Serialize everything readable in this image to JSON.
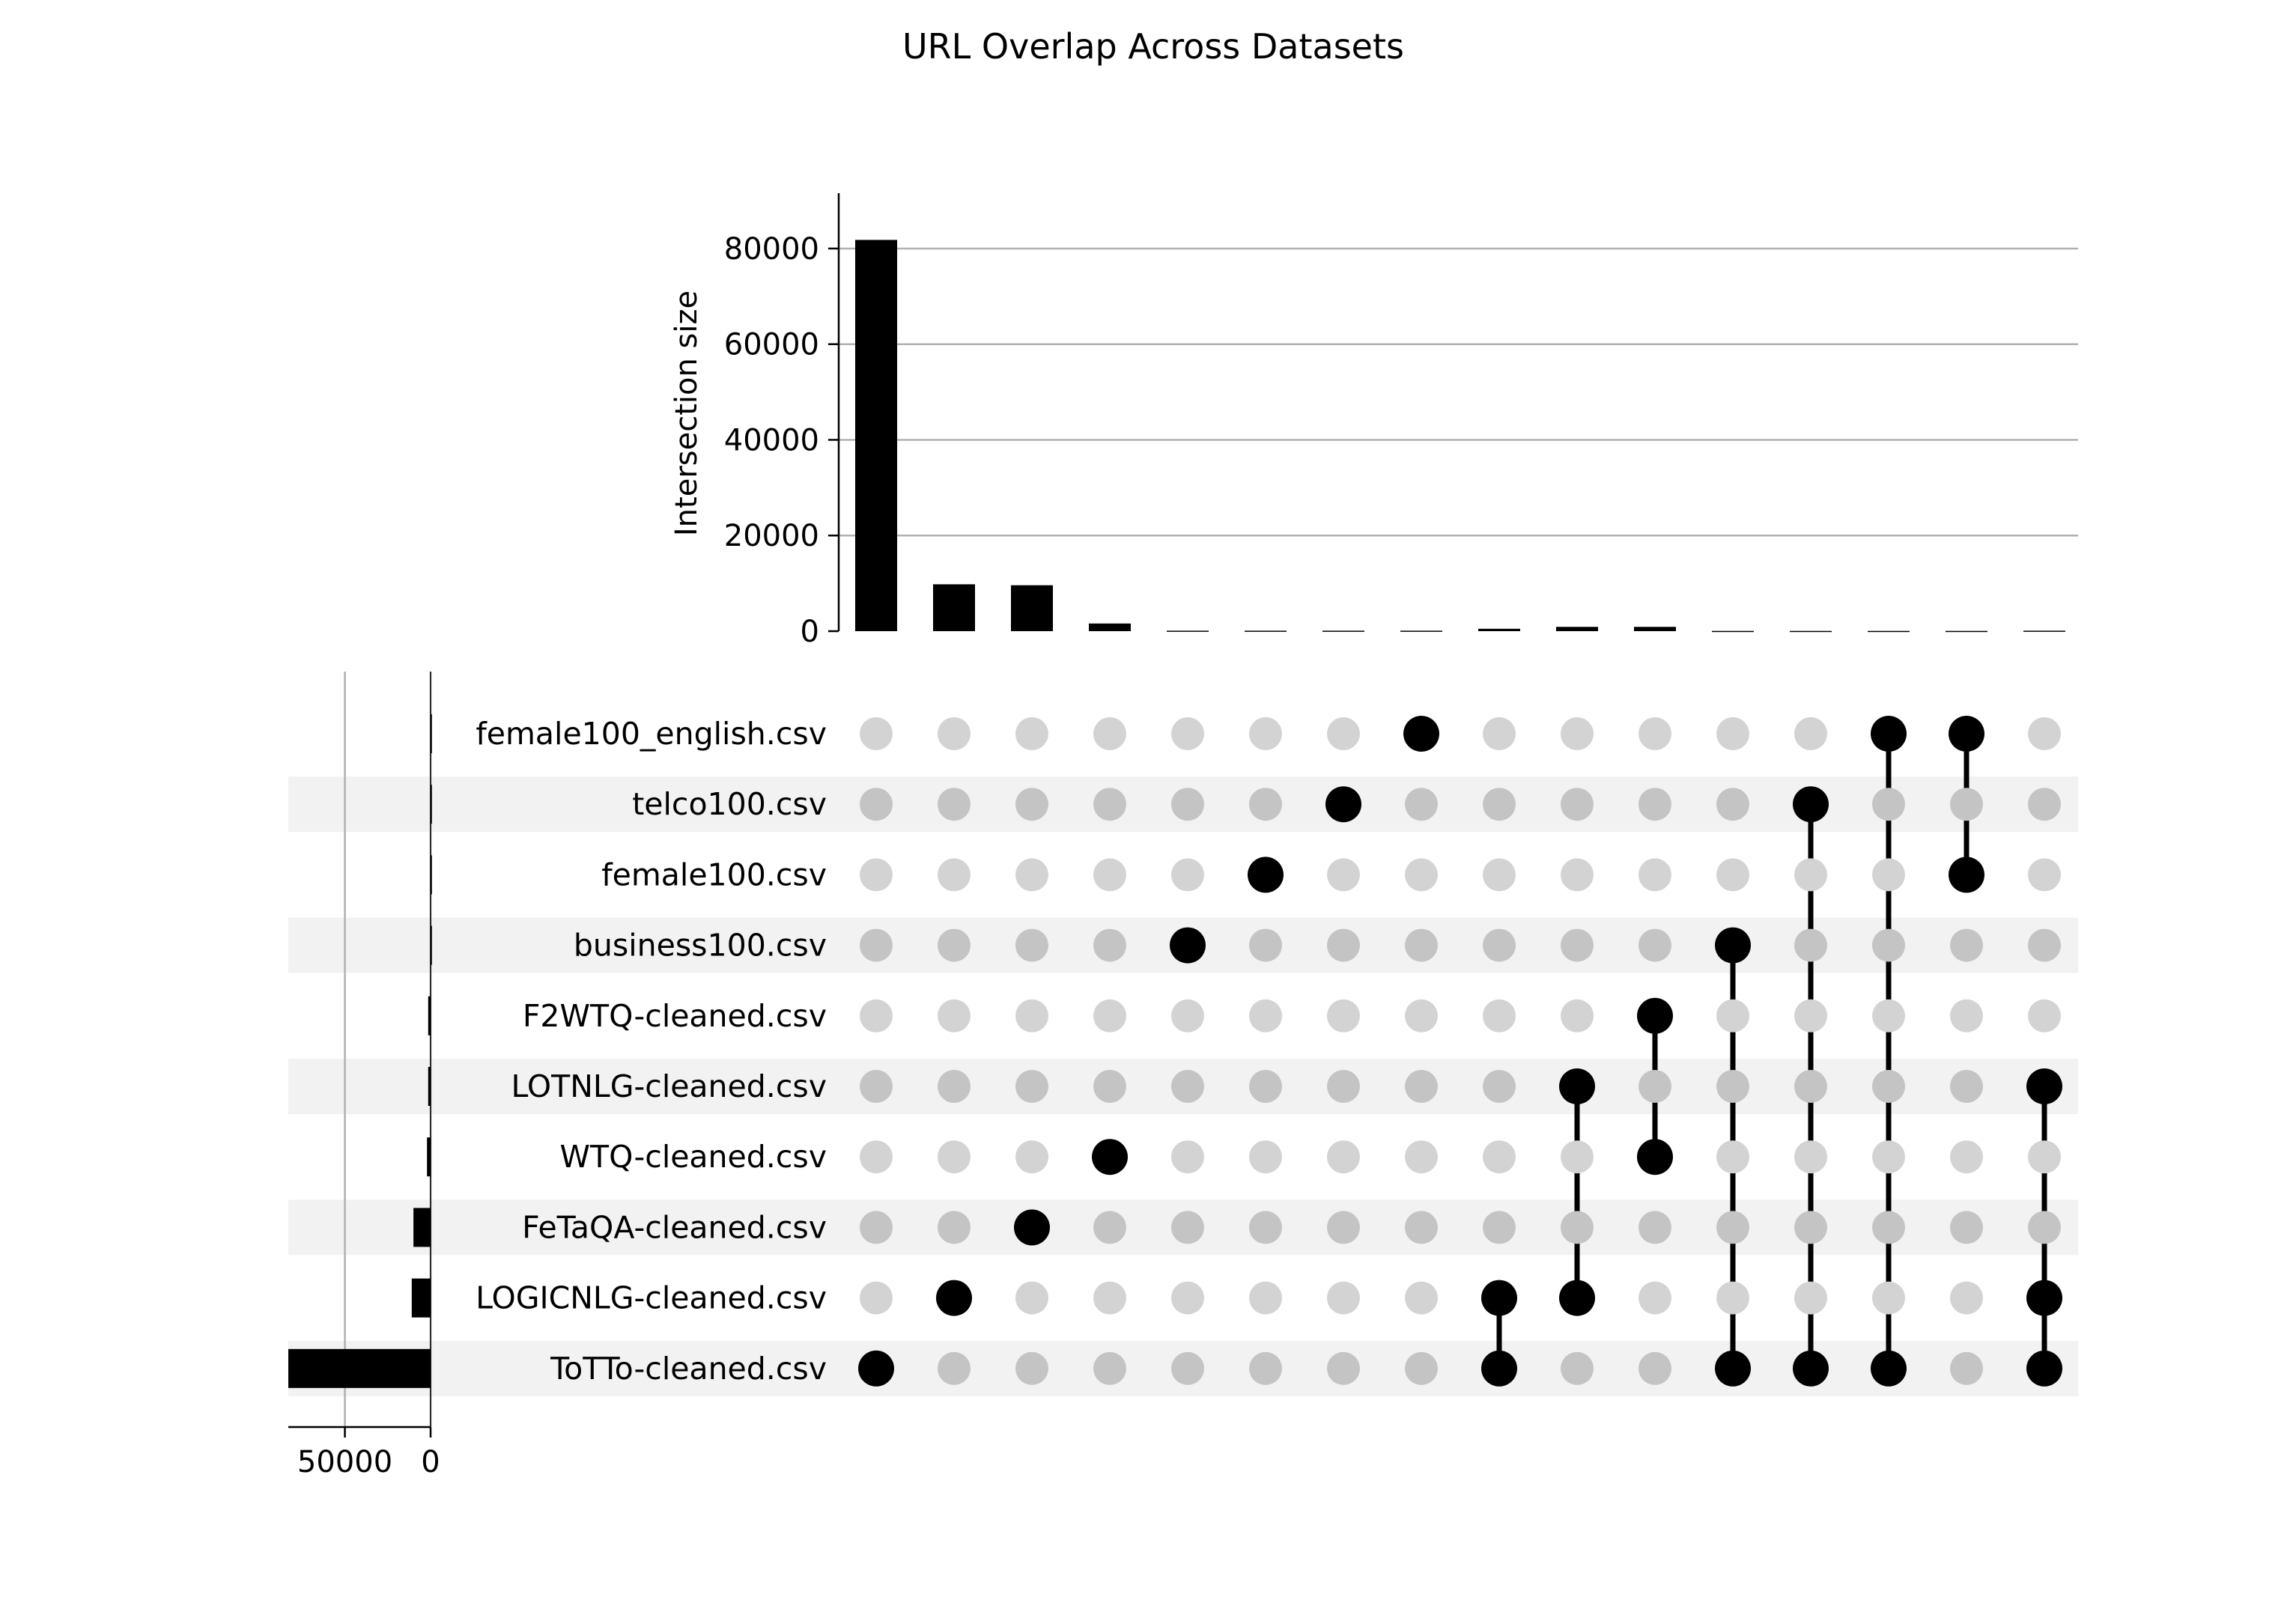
{
  "chart_data": {
    "type": "upset",
    "title": "URL Overlap Across Datasets",
    "ylabel": "Intersection size",
    "ylim": [
      0,
      85000
    ],
    "yticks": [
      0,
      20000,
      40000,
      60000,
      80000
    ],
    "set_size_ticks": [
      50000,
      0
    ],
    "set_size_xlim": [
      83000,
      0
    ],
    "sets": [
      {
        "name": "female100_english.csv",
        "size": 100
      },
      {
        "name": "telco100.csv",
        "size": 100
      },
      {
        "name": "female100.csv",
        "size": 100
      },
      {
        "name": "business100.csv",
        "size": 100
      },
      {
        "name": "F2WTQ-cleaned.csv",
        "size": 1400
      },
      {
        "name": "LOTNLG-cleaned.csv",
        "size": 1400
      },
      {
        "name": "WTQ-cleaned.csv",
        "size": 2100
      },
      {
        "name": "FeTaQA-cleaned.csv",
        "size": 10000
      },
      {
        "name": "LOGICNLG-cleaned.csv",
        "size": 11000
      },
      {
        "name": "ToTTo-cleaned.csv",
        "size": 83000
      }
    ],
    "intersections": [
      {
        "members": [
          "ToTTo-cleaned.csv"
        ],
        "size": 81800
      },
      {
        "members": [
          "LOGICNLG-cleaned.csv"
        ],
        "size": 9800
      },
      {
        "members": [
          "FeTaQA-cleaned.csv"
        ],
        "size": 9600
      },
      {
        "members": [
          "WTQ-cleaned.csv"
        ],
        "size": 1600
      },
      {
        "members": [
          "business100.csv"
        ],
        "size": 100
      },
      {
        "members": [
          "female100.csv"
        ],
        "size": 100
      },
      {
        "members": [
          "telco100.csv"
        ],
        "size": 100
      },
      {
        "members": [
          "female100_english.csv"
        ],
        "size": 100
      },
      {
        "members": [
          "LOGICNLG-cleaned.csv",
          "ToTTo-cleaned.csv"
        ],
        "size": 500
      },
      {
        "members": [
          "LOTNLG-cleaned.csv",
          "LOGICNLG-cleaned.csv"
        ],
        "size": 900
      },
      {
        "members": [
          "F2WTQ-cleaned.csv",
          "WTQ-cleaned.csv"
        ],
        "size": 900
      },
      {
        "members": [
          "business100.csv",
          "ToTTo-cleaned.csv"
        ],
        "size": 50
      },
      {
        "members": [
          "telco100.csv",
          "ToTTo-cleaned.csv"
        ],
        "size": 50
      },
      {
        "members": [
          "female100_english.csv",
          "ToTTo-cleaned.csv"
        ],
        "size": 50
      },
      {
        "members": [
          "female100_english.csv",
          "female100.csv"
        ],
        "size": 50
      },
      {
        "members": [
          "LOTNLG-cleaned.csv",
          "LOGICNLG-cleaned.csv",
          "ToTTo-cleaned.csv"
        ],
        "size": 100
      }
    ],
    "colors": {
      "bar": "#000000",
      "dot_active": "#000000",
      "dot_inactive_light": "#d3d3d3",
      "dot_inactive_dark": "#c4c4c4",
      "stripe": "#f2f2f2",
      "grid": "#b0b0b0"
    }
  }
}
